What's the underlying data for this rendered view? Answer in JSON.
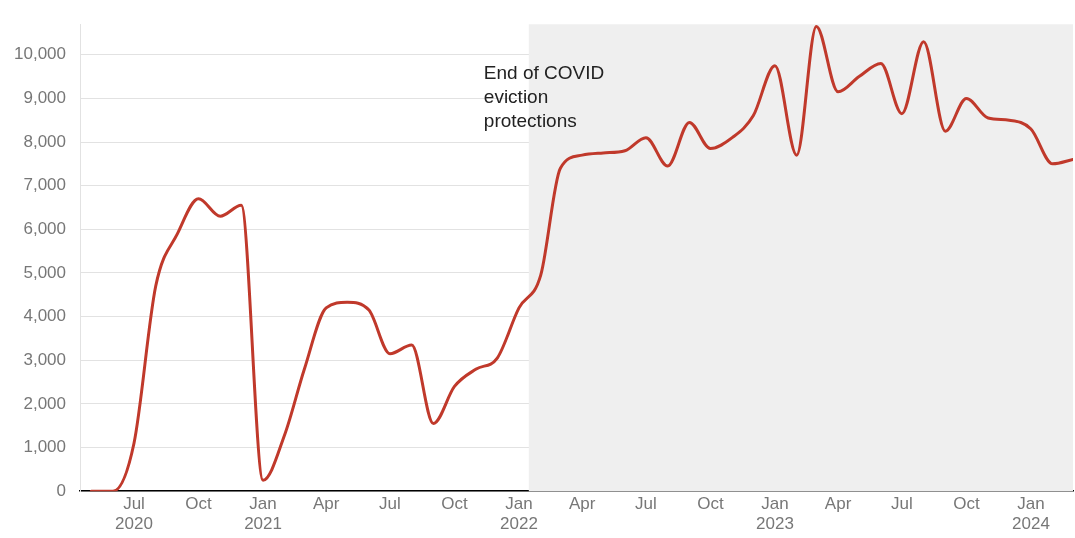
{
  "chart_data": {
    "type": "line",
    "x": [
      "2020-05",
      "2020-06",
      "2020-07",
      "2020-08",
      "2020-09",
      "2020-10",
      "2020-11",
      "2020-12",
      "2021-01",
      "2021-02",
      "2021-03",
      "2021-04",
      "2021-05",
      "2021-06",
      "2021-07",
      "2021-08",
      "2021-09",
      "2021-10",
      "2021-11",
      "2021-12",
      "2022-01",
      "2022-02",
      "2022-03",
      "2022-04",
      "2022-05",
      "2022-06",
      "2022-07",
      "2022-08",
      "2022-09",
      "2022-10",
      "2022-11",
      "2022-12",
      "2023-01",
      "2023-02",
      "2023-03",
      "2023-04",
      "2023-05",
      "2023-06",
      "2023-07",
      "2023-08",
      "2023-09",
      "2023-10",
      "2023-11",
      "2023-12",
      "2024-01",
      "2024-02",
      "2024-03"
    ],
    "series": [
      {
        "color": "#c0392b",
        "values": [
          0,
          0,
          1100,
          4700,
          5900,
          6700,
          6300,
          6550,
          250,
          1300,
          2800,
          4200,
          4330,
          4150,
          3150,
          3350,
          1550,
          2400,
          2800,
          3050,
          4200,
          4950,
          7400,
          7700,
          7750,
          7800,
          8100,
          7450,
          8450,
          7850,
          8100,
          8600,
          9750,
          7700,
          10650,
          9150,
          9500,
          9800,
          8650,
          10300,
          8250,
          9000,
          8550,
          8500,
          8300,
          7500,
          7600
        ]
      }
    ],
    "xlim": [
      "2020-04-15",
      "2024-03-01"
    ],
    "xticks": [
      {
        "value": "2020-07",
        "label": "Jul 2020"
      },
      {
        "value": "2020-10",
        "label": "Oct"
      },
      {
        "value": "2021-01",
        "label": "Jan 2021"
      },
      {
        "value": "2021-04",
        "label": "Apr"
      },
      {
        "value": "2021-07",
        "label": "Jul"
      },
      {
        "value": "2021-10",
        "label": "Oct"
      },
      {
        "value": "2022-01",
        "label": "Jan 2022"
      },
      {
        "value": "2022-04",
        "label": "Apr"
      },
      {
        "value": "2022-07",
        "label": "Jul"
      },
      {
        "value": "2022-10",
        "label": "Oct"
      },
      {
        "value": "2023-01",
        "label": "Jan 2023"
      },
      {
        "value": "2023-04",
        "label": "Apr"
      },
      {
        "value": "2023-07",
        "label": "Jul"
      },
      {
        "value": "2023-10",
        "label": "Oct"
      },
      {
        "value": "2024-01",
        "label": "Jan 2024"
      }
    ],
    "ylim": [
      0,
      10700
    ],
    "yticks": [
      {
        "value": 0,
        "label": "0"
      },
      {
        "value": 1000,
        "label": "1,000"
      },
      {
        "value": 2000,
        "label": "2,000"
      },
      {
        "value": 3000,
        "label": "3,000"
      },
      {
        "value": 4000,
        "label": "4,000"
      },
      {
        "value": 5000,
        "label": "5,000"
      },
      {
        "value": 6000,
        "label": "6,000"
      },
      {
        "value": 7000,
        "label": "7,000"
      },
      {
        "value": 8000,
        "label": "8,000"
      },
      {
        "value": 9000,
        "label": "9,000"
      },
      {
        "value": 10000,
        "label": "10,000"
      }
    ],
    "bands": [
      {
        "axis": "x",
        "from": "2022-01-15",
        "to": "2024-03-01",
        "label": "End of COVID eviction protections",
        "color": "#efefef"
      }
    ],
    "grid": "y",
    "legend": false,
    "marker": "none",
    "line_style": "solid"
  }
}
